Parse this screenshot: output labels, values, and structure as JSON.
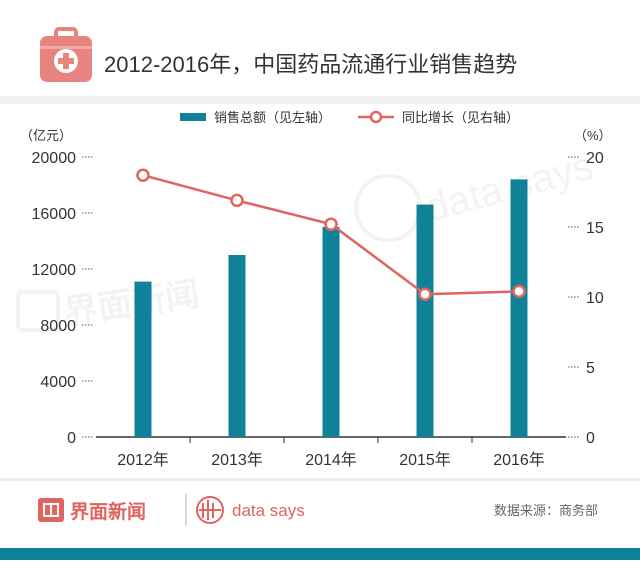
{
  "header": {
    "title": "2012-2016年，中国药品流通行业销售趋势",
    "icon": "medical-kit-icon",
    "icon_color": "#e8837f"
  },
  "chart_data": {
    "type": "bar",
    "categories": [
      "2012年",
      "2013年",
      "2014年",
      "2015年",
      "2016年"
    ],
    "series": [
      {
        "name": "销售总额（见左轴）",
        "kind": "bar",
        "axis": "left",
        "values": [
          11100,
          13000,
          15000,
          16600,
          18400
        ],
        "color": "#0f8199"
      },
      {
        "name": "同比增长（见右轴）",
        "kind": "line",
        "axis": "right",
        "values": [
          18.7,
          16.9,
          15.2,
          10.2,
          10.4
        ],
        "color": "#e06460"
      }
    ],
    "y_left": {
      "unit": "（亿元）",
      "min": 0,
      "max": 20000,
      "ticks": [
        "0",
        "4000",
        "8000",
        "12000",
        "16000",
        "20000"
      ]
    },
    "y_right": {
      "unit": "（%）",
      "min": 0,
      "max": 20,
      "ticks": [
        "0",
        "5",
        "10",
        "15",
        "20"
      ]
    },
    "legend": "top-center",
    "grid": false
  },
  "footer": {
    "brand": "界面新闻",
    "brand_color": "#e06460",
    "partner": "data says",
    "source": "数据来源：商务部"
  }
}
